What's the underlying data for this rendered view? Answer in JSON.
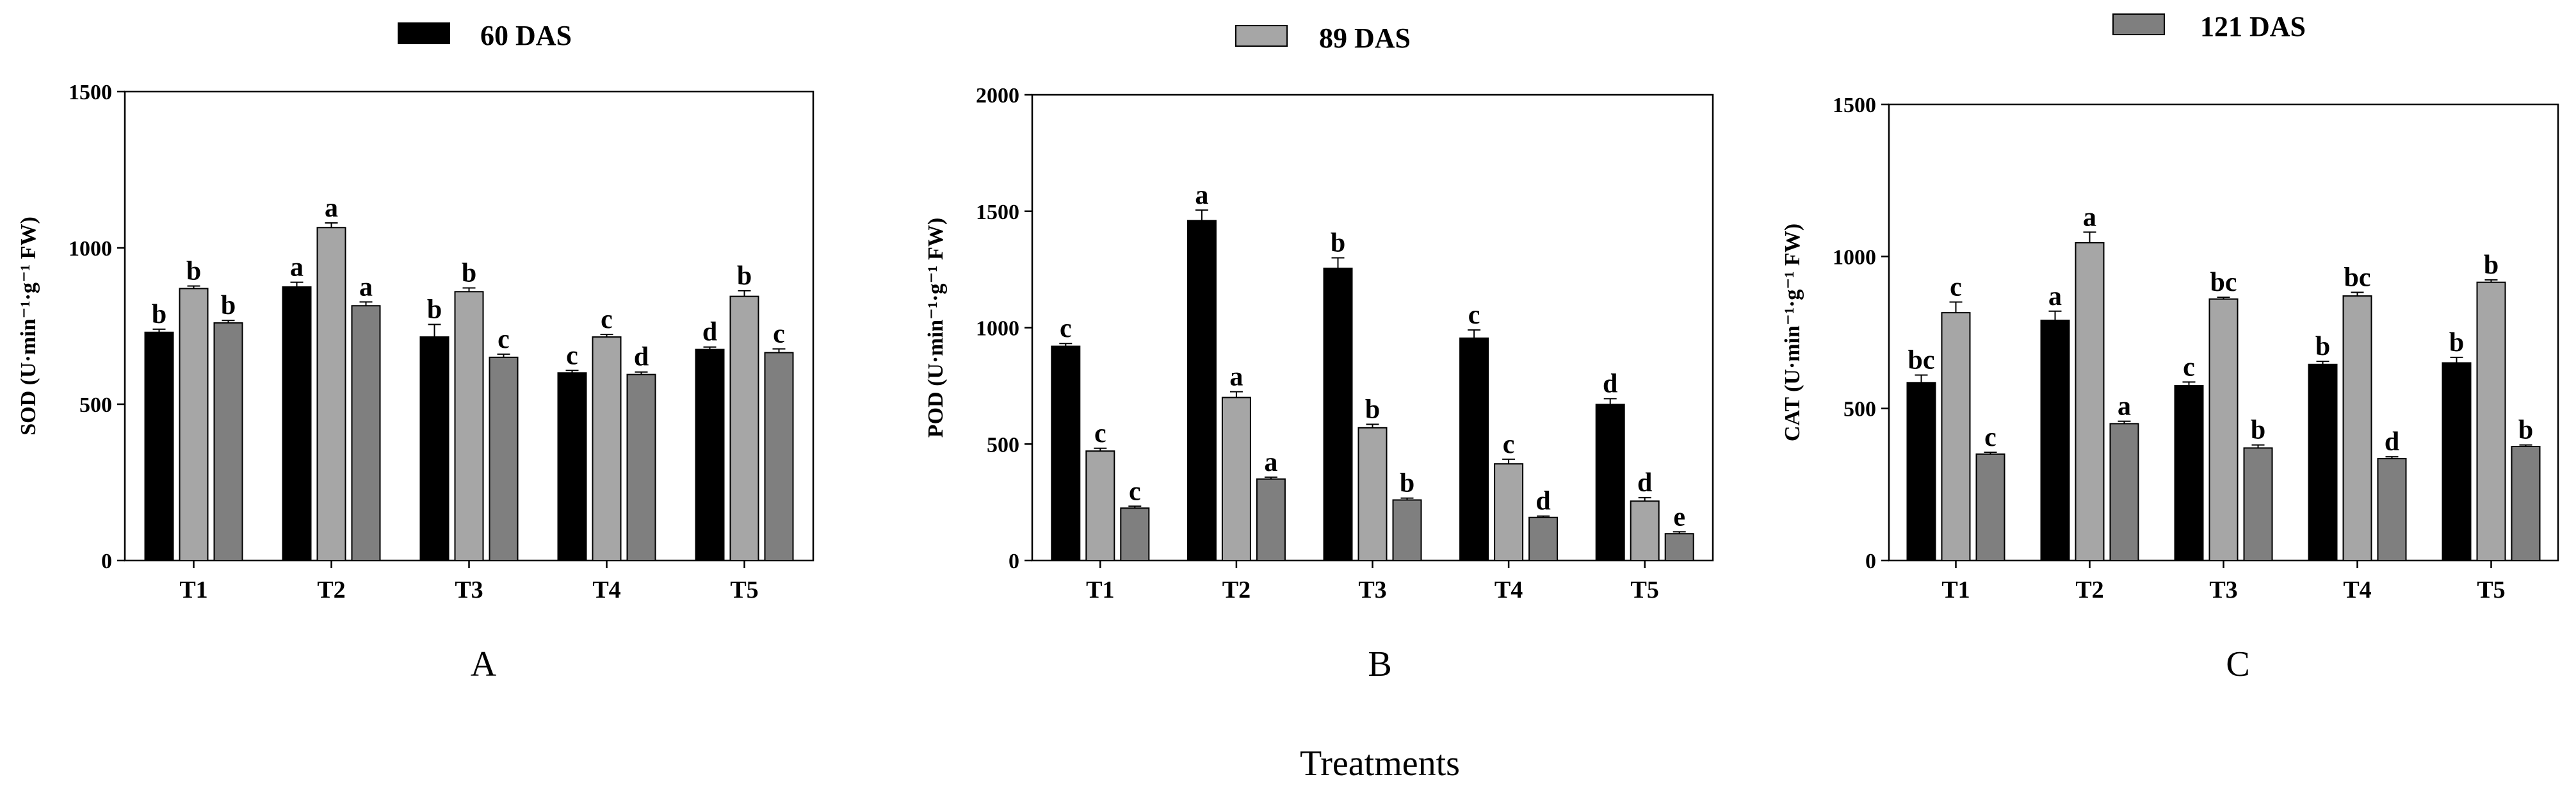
{
  "legend": [
    {
      "label": "60 DAS",
      "color": "#000000"
    },
    {
      "label": "89 DAS",
      "color": "#a6a6a6"
    },
    {
      "label": "121 DAS",
      "color": "#7f7f7f"
    }
  ],
  "xlabel": "Treatments",
  "chart_data": [
    {
      "type": "bar",
      "panel": "A",
      "ylabel": "SOD (U·min⁻¹·g⁻¹ FW)",
      "ylim": [
        0,
        1500
      ],
      "yticks": [
        0,
        500,
        1000,
        1500
      ],
      "categories": [
        "T1",
        "T2",
        "T3",
        "T4",
        "T5"
      ],
      "series": [
        {
          "name": "60 DAS",
          "color": "#000000",
          "values": [
            730,
            875,
            715,
            600,
            675
          ],
          "errors": [
            10,
            15,
            40,
            8,
            8
          ],
          "letters": [
            "b",
            "a",
            "b",
            "c",
            "d"
          ]
        },
        {
          "name": "89 DAS",
          "color": "#a6a6a6",
          "values": [
            870,
            1065,
            860,
            715,
            845
          ],
          "errors": [
            8,
            15,
            12,
            8,
            18
          ],
          "letters": [
            "b",
            "a",
            "b",
            "c",
            "b"
          ]
        },
        {
          "name": "121 DAS",
          "color": "#7f7f7f",
          "values": [
            760,
            815,
            650,
            595,
            665
          ],
          "errors": [
            8,
            12,
            10,
            8,
            12
          ],
          "letters": [
            "b",
            "a",
            "c",
            "d",
            "c"
          ]
        }
      ]
    },
    {
      "type": "bar",
      "panel": "B",
      "ylabel": "POD (U·min⁻¹·g⁻¹ FW)",
      "ylim": [
        0,
        2000
      ],
      "yticks": [
        0,
        500,
        1000,
        1500,
        2000
      ],
      "categories": [
        "T1",
        "T2",
        "T3",
        "T4",
        "T5"
      ],
      "series": [
        {
          "name": "60 DAS",
          "color": "#000000",
          "values": [
            920,
            1460,
            1255,
            955,
            670
          ],
          "errors": [
            12,
            45,
            45,
            35,
            25
          ],
          "letters": [
            "c",
            "a",
            "b",
            "c",
            "d"
          ]
        },
        {
          "name": "89 DAS",
          "color": "#a6a6a6",
          "values": [
            470,
            700,
            570,
            415,
            255
          ],
          "errors": [
            12,
            25,
            15,
            20,
            15
          ],
          "letters": [
            "c",
            "a",
            "b",
            "c",
            "d"
          ]
        },
        {
          "name": "121 DAS",
          "color": "#7f7f7f",
          "values": [
            225,
            350,
            260,
            185,
            115
          ],
          "errors": [
            8,
            8,
            8,
            6,
            8
          ],
          "letters": [
            "c",
            "a",
            "b",
            "d",
            "e"
          ]
        }
      ]
    },
    {
      "type": "bar",
      "panel": "C",
      "ylabel": "CAT (U·min⁻¹·g⁻¹ FW)",
      "ylim": [
        0,
        1500
      ],
      "yticks": [
        0,
        500,
        1000,
        1500
      ],
      "categories": [
        "T1",
        "T2",
        "T3",
        "T4",
        "T5"
      ],
      "series": [
        {
          "name": "60 DAS",
          "color": "#000000",
          "values": [
            585,
            790,
            575,
            645,
            650
          ],
          "errors": [
            25,
            30,
            12,
            10,
            18
          ],
          "letters": [
            "bc",
            "a",
            "c",
            "b",
            "b"
          ]
        },
        {
          "name": "89 DAS",
          "color": "#a6a6a6",
          "values": [
            815,
            1045,
            860,
            870,
            915
          ],
          "errors": [
            35,
            35,
            6,
            12,
            8
          ],
          "letters": [
            "c",
            "a",
            "bc",
            "bc",
            "b"
          ]
        },
        {
          "name": "121 DAS",
          "color": "#7f7f7f",
          "values": [
            350,
            450,
            370,
            335,
            375
          ],
          "errors": [
            6,
            8,
            10,
            6,
            5
          ],
          "letters": [
            "c",
            "a",
            "b",
            "d",
            "b"
          ]
        }
      ]
    }
  ]
}
